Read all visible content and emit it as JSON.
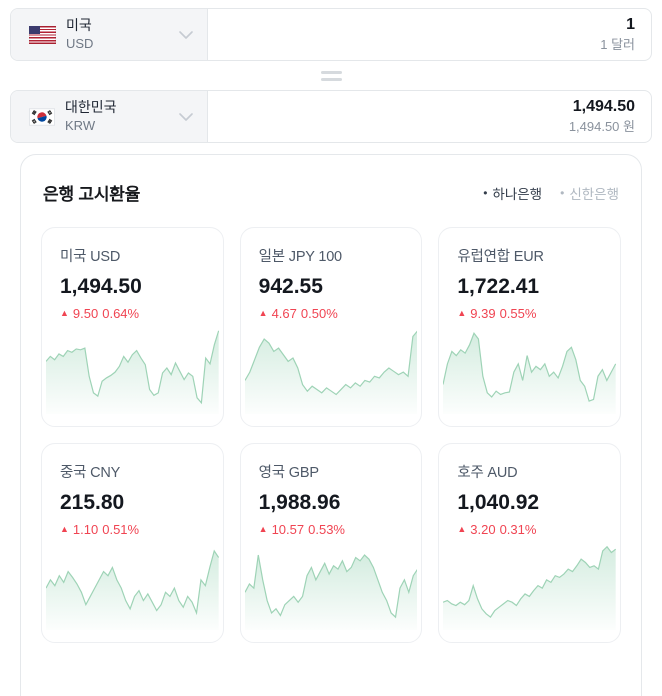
{
  "converter": {
    "rows": [
      {
        "country": "미국",
        "code": "USD",
        "amount": "1",
        "amount_sub": "1 달러",
        "flag": "us"
      },
      {
        "country": "대한민국",
        "code": "KRW",
        "amount": "1,494.50",
        "amount_sub": "1,494.50 원",
        "flag": "kr"
      }
    ]
  },
  "panel": {
    "title": "은행 고시환율",
    "banks": [
      {
        "label": "하나은행",
        "active": true
      },
      {
        "label": "신한은행",
        "active": false
      }
    ]
  },
  "icons": {
    "up": "▲",
    "bullet": "•"
  },
  "colors": {
    "up_red": "#f04452",
    "spark_line": "#9ed3b6",
    "spark_fill": "#70c197",
    "active_text": "#333d4b",
    "inactive_text": "#b0b8c1"
  },
  "chart_data": {
    "type": "area",
    "note": "six unlabeled sparklines; values normalized 0-100 in cards[].spark"
  },
  "cards": [
    {
      "name": "미국 USD",
      "value": "1,494.50",
      "change": "9.50",
      "percent": "0.64%",
      "direction": "up",
      "spark": [
        58,
        64,
        60,
        67,
        64,
        71,
        69,
        73,
        72,
        74,
        40,
        20,
        16,
        34,
        38,
        41,
        45,
        52,
        64,
        57,
        66,
        71,
        62,
        54,
        24,
        17,
        20,
        44,
        50,
        42,
        56,
        46,
        36,
        44,
        40,
        14,
        8,
        62,
        55,
        78,
        95
      ]
    },
    {
      "name": "일본 JPY 100",
      "value": "942.55",
      "change": "4.67",
      "percent": "0.50%",
      "direction": "up",
      "spark": [
        35,
        45,
        60,
        75,
        85,
        80,
        70,
        74,
        66,
        58,
        62,
        50,
        30,
        22,
        28,
        24,
        20,
        26,
        22,
        18,
        24,
        30,
        26,
        32,
        28,
        35,
        33,
        40,
        38,
        45,
        50,
        46,
        42,
        45,
        40,
        88,
        95
      ]
    },
    {
      "name": "유럽연합 EUR",
      "value": "1,722.41",
      "change": "9.39",
      "percent": "0.55%",
      "direction": "up",
      "spark": [
        30,
        55,
        70,
        65,
        72,
        68,
        78,
        92,
        85,
        40,
        20,
        15,
        22,
        18,
        20,
        21,
        45,
        55,
        35,
        65,
        45,
        52,
        48,
        55,
        40,
        45,
        38,
        52,
        70,
        75,
        60,
        35,
        28,
        10,
        12,
        40,
        48,
        35,
        45,
        55
      ]
    },
    {
      "name": "중국 CNY",
      "value": "215.80",
      "change": "1.10",
      "percent": "0.51%",
      "direction": "up",
      "spark": [
        45,
        55,
        48,
        60,
        52,
        65,
        58,
        50,
        40,
        25,
        35,
        45,
        55,
        65,
        60,
        70,
        55,
        45,
        30,
        20,
        35,
        42,
        30,
        38,
        28,
        18,
        25,
        40,
        35,
        45,
        30,
        22,
        35,
        28,
        15,
        55,
        48,
        70,
        90,
        82
      ]
    },
    {
      "name": "영국 GBP",
      "value": "1,988.96",
      "change": "10.57",
      "percent": "0.53%",
      "direction": "up",
      "spark": [
        40,
        50,
        45,
        85,
        55,
        30,
        15,
        20,
        12,
        25,
        30,
        35,
        28,
        35,
        60,
        70,
        55,
        65,
        75,
        62,
        72,
        68,
        78,
        65,
        70,
        82,
        78,
        85,
        80,
        70,
        55,
        40,
        30,
        15,
        10,
        45,
        55,
        40,
        60,
        68
      ]
    },
    {
      "name": "호주 AUD",
      "value": "1,040.92",
      "change": "3.20",
      "percent": "0.31%",
      "direction": "up",
      "spark": [
        28,
        30,
        26,
        24,
        28,
        25,
        30,
        48,
        32,
        20,
        14,
        10,
        18,
        22,
        26,
        30,
        28,
        24,
        32,
        38,
        35,
        42,
        48,
        45,
        55,
        52,
        60,
        58,
        62,
        68,
        65,
        72,
        80,
        76,
        70,
        72,
        68,
        90,
        95,
        88,
        92
      ]
    }
  ]
}
